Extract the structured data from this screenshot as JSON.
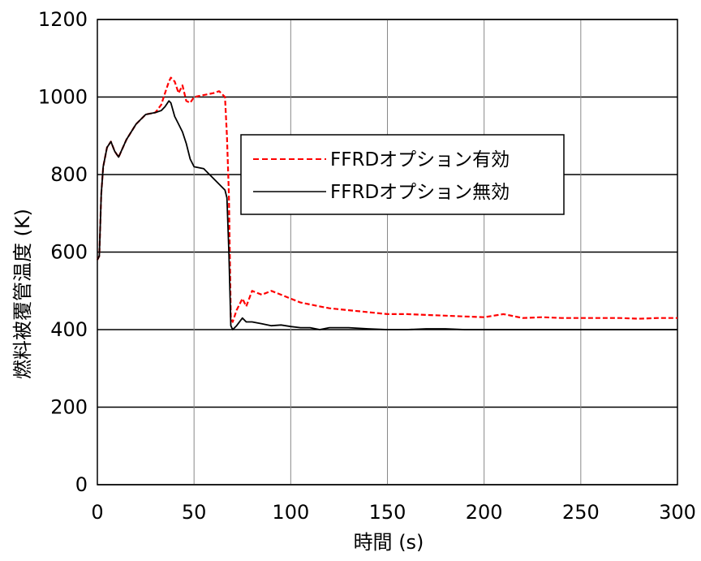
{
  "chart_data": {
    "type": "line",
    "xlabel": "時間 (s)",
    "ylabel": "燃料被覆管温度 (K)",
    "xlim": [
      0,
      300
    ],
    "ylim": [
      0,
      1200
    ],
    "xticks": [
      "0",
      "50",
      "100",
      "150",
      "200",
      "250",
      "300"
    ],
    "yticks": [
      "0",
      "200",
      "400",
      "600",
      "800",
      "1000",
      "1200"
    ],
    "grid": true,
    "legend_position": "right",
    "series": [
      {
        "name": "FFRDオプション有効",
        "color": "#ff0000",
        "style": "dashed",
        "x": [
          0,
          1,
          2,
          3,
          5,
          7,
          9,
          11,
          15,
          20,
          25,
          30,
          33,
          35,
          37,
          38,
          40,
          42,
          44,
          46,
          48,
          50,
          55,
          60,
          63,
          66,
          67,
          68,
          69,
          70,
          72,
          75,
          77,
          80,
          85,
          90,
          95,
          100,
          105,
          110,
          115,
          120,
          130,
          140,
          150,
          160,
          170,
          180,
          190,
          200,
          210,
          220,
          230,
          240,
          250,
          260,
          270,
          280,
          290,
          300
        ],
        "y": [
          580,
          590,
          750,
          820,
          870,
          885,
          860,
          845,
          890,
          930,
          955,
          960,
          980,
          1010,
          1040,
          1050,
          1040,
          1010,
          1030,
          990,
          985,
          1000,
          1005,
          1010,
          1015,
          1000,
          900,
          750,
          430,
          420,
          450,
          480,
          460,
          500,
          490,
          500,
          490,
          480,
          470,
          465,
          460,
          455,
          450,
          445,
          440,
          440,
          438,
          436,
          434,
          432,
          440,
          430,
          432,
          430,
          430,
          430,
          430,
          428,
          430,
          430
        ]
      },
      {
        "name": "FFRDオプション無効",
        "color": "#000000",
        "style": "solid",
        "x": [
          0,
          1,
          2,
          3,
          5,
          7,
          9,
          11,
          15,
          20,
          25,
          30,
          33,
          35,
          37,
          38,
          40,
          42,
          44,
          46,
          48,
          50,
          55,
          60,
          63,
          66,
          67,
          68,
          69,
          70,
          72,
          75,
          77,
          80,
          85,
          90,
          95,
          100,
          105,
          110,
          115,
          120,
          130,
          140,
          150,
          160,
          170,
          180,
          190,
          200,
          210,
          220,
          230,
          240,
          250,
          260,
          270,
          280,
          290,
          300
        ],
        "y": [
          580,
          590,
          750,
          820,
          870,
          885,
          860,
          845,
          890,
          930,
          955,
          960,
          965,
          975,
          990,
          985,
          950,
          930,
          910,
          880,
          840,
          820,
          815,
          790,
          775,
          760,
          740,
          600,
          410,
          400,
          410,
          430,
          420,
          420,
          415,
          410,
          412,
          408,
          405,
          405,
          400,
          405,
          405,
          402,
          400,
          400,
          402,
          402,
          400,
          400,
          400,
          400,
          400,
          400,
          400,
          400,
          400,
          400,
          400,
          400
        ]
      }
    ]
  }
}
